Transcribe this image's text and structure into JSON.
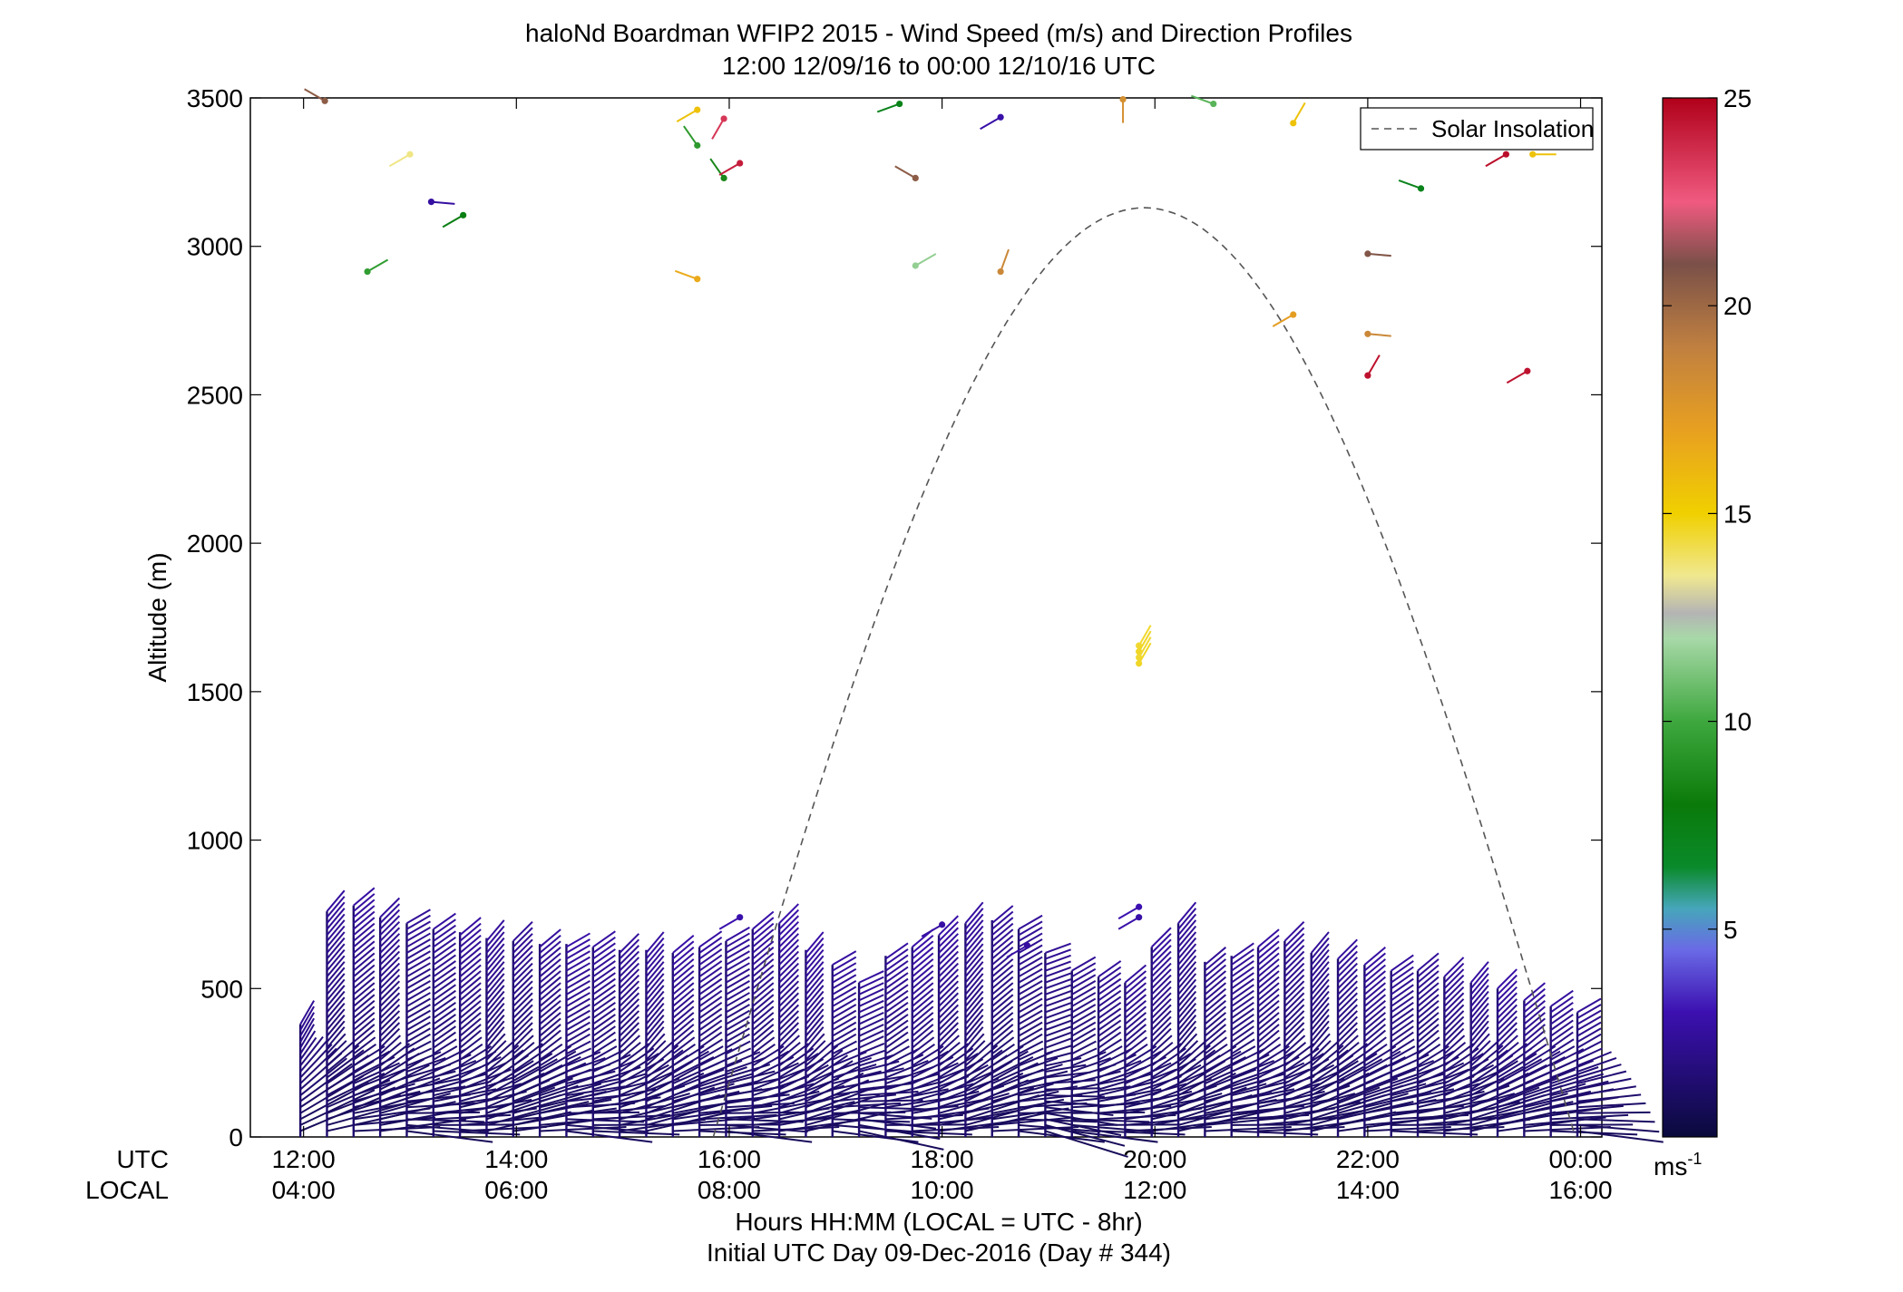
{
  "chart_data": {
    "type": "scatter",
    "title": "haloNd Boardman WFIP2 2015 - Wind Speed (m/s) and Direction Profiles",
    "subtitle": "12:00 12/09/16 to 00:00 12/10/16  UTC",
    "ylabel": "Altitude (m)",
    "xlabel": "Hours HH:MM  (LOCAL = UTC - 8hr)",
    "xlabel2": "Initial UTC Day 09-Dec-2016 (Day # 344)",
    "row_label_utc": "UTC",
    "row_label_local": "LOCAL",
    "xlim": [
      11.5,
      24.2
    ],
    "ylim": [
      0,
      3500
    ],
    "grid": false,
    "legend_position": "top-right",
    "legend": [
      {
        "name": "Solar Insolation",
        "style": "dashed",
        "color": "#555555"
      }
    ],
    "x_ticks": [
      {
        "hour": 12,
        "utc": "12:00",
        "local": "04:00"
      },
      {
        "hour": 14,
        "utc": "14:00",
        "local": "06:00"
      },
      {
        "hour": 16,
        "utc": "16:00",
        "local": "08:00"
      },
      {
        "hour": 18,
        "utc": "18:00",
        "local": "10:00"
      },
      {
        "hour": 20,
        "utc": "20:00",
        "local": "12:00"
      },
      {
        "hour": 22,
        "utc": "22:00",
        "local": "14:00"
      },
      {
        "hour": 24,
        "utc": "00:00",
        "local": "16:00"
      }
    ],
    "y_ticks": [
      {
        "v": 0,
        "label": "0"
      },
      {
        "v": 500,
        "label": "500"
      },
      {
        "v": 1000,
        "label": "1000"
      },
      {
        "v": 1500,
        "label": "1500"
      },
      {
        "v": 2000,
        "label": "2000"
      },
      {
        "v": 2500,
        "label": "2500"
      },
      {
        "v": 3000,
        "label": "3000"
      },
      {
        "v": 3500,
        "label": "3500"
      }
    ],
    "colorbar": {
      "min": 0,
      "max": 25,
      "ticks": [
        {
          "v": 5,
          "label": "5"
        },
        {
          "v": 10,
          "label": "10"
        },
        {
          "v": 15,
          "label": "15"
        },
        {
          "v": 20,
          "label": "20"
        },
        {
          "v": 25,
          "label": "25"
        }
      ],
      "unit_label": "ms",
      "unit_exponent": "-1",
      "stops": [
        {
          "v": 0,
          "color": "#0a0a3c"
        },
        {
          "v": 3,
          "color": "#3c10b0"
        },
        {
          "v": 4.5,
          "color": "#6a6ae6"
        },
        {
          "v": 5.5,
          "color": "#46a6ba"
        },
        {
          "v": 6.5,
          "color": "#0a8a2a"
        },
        {
          "v": 8,
          "color": "#0a7a0a"
        },
        {
          "v": 10,
          "color": "#3ea83e"
        },
        {
          "v": 12,
          "color": "#a8d8a8"
        },
        {
          "v": 12.6,
          "color": "#b4b4b4"
        },
        {
          "v": 13.5,
          "color": "#f0e890"
        },
        {
          "v": 15,
          "color": "#f0d000"
        },
        {
          "v": 17,
          "color": "#e8a020"
        },
        {
          "v": 19,
          "color": "#c08040"
        },
        {
          "v": 21,
          "color": "#7a5048"
        },
        {
          "v": 22.5,
          "color": "#f05a80"
        },
        {
          "v": 25,
          "color": "#b0001a"
        }
      ]
    },
    "solar_insolation": {
      "start_hour": 15.85,
      "end_hour": 23.95,
      "peak_altitude": 3130
    },
    "profiles": {
      "hours": [
        11.97,
        12.22,
        12.47,
        12.72,
        12.97,
        13.22,
        13.47,
        13.72,
        13.97,
        14.22,
        14.47,
        14.72,
        14.97,
        15.22,
        15.47,
        15.72,
        15.97,
        16.22,
        16.47,
        16.72,
        16.97,
        17.22,
        17.47,
        17.72,
        17.97,
        18.22,
        18.47,
        18.72,
        18.97,
        19.22,
        19.47,
        19.72,
        19.97,
        20.22,
        20.47,
        20.72,
        20.97,
        21.22,
        21.47,
        21.72,
        21.97,
        22.22,
        22.47,
        22.72,
        22.97,
        23.22,
        23.47,
        23.72,
        23.97
      ],
      "top_altitude_m": [
        380,
        760,
        780,
        740,
        720,
        700,
        690,
        670,
        660,
        650,
        650,
        640,
        630,
        630,
        620,
        640,
        660,
        700,
        720,
        630,
        580,
        520,
        610,
        640,
        680,
        720,
        730,
        700,
        620,
        560,
        540,
        520,
        640,
        720,
        590,
        610,
        640,
        660,
        620,
        600,
        580,
        560,
        560,
        540,
        520,
        500,
        460,
        440,
        420
      ],
      "speed_ms": [
        2.0,
        2.2,
        2.3,
        2.2,
        2.1,
        2.2,
        2.3,
        2.2,
        2.1,
        2.2,
        2.4,
        2.3,
        2.2,
        2.3,
        2.4,
        2.3,
        2.2,
        2.4,
        2.5,
        2.4,
        2.3,
        2.2,
        2.3,
        2.5,
        2.4,
        2.3,
        2.2,
        2.1,
        2.0,
        2.0,
        2.1,
        2.2,
        2.3,
        2.2,
        2.1,
        2.2,
        2.3,
        2.2,
        2.1,
        2.2,
        2.3,
        2.2,
        2.1,
        2.2,
        2.3,
        2.4,
        2.3,
        2.2,
        2.1
      ],
      "direction_deg": [
        30,
        40,
        50,
        45,
        60,
        55,
        50,
        40,
        45,
        50,
        60,
        55,
        45,
        40,
        50,
        55,
        60,
        50,
        45,
        40,
        60,
        65,
        55,
        50,
        45,
        40,
        50,
        60,
        70,
        60,
        55,
        50,
        45,
        40,
        50,
        55,
        50,
        45,
        40,
        45,
        50,
        55,
        50,
        45,
        40,
        45,
        50,
        55,
        60
      ]
    },
    "sparse_barbs": [
      {
        "x": 12.2,
        "y": 3490,
        "speed": 20.5,
        "dir": 300
      },
      {
        "x": 13.0,
        "y": 3310,
        "speed": 13.6,
        "dir": 240
      },
      {
        "x": 12.6,
        "y": 2915,
        "speed": 9.5,
        "dir": 60
      },
      {
        "x": 13.2,
        "y": 3150,
        "speed": 2.6,
        "dir": 95
      },
      {
        "x": 13.5,
        "y": 3105,
        "speed": 7.6,
        "dir": 240
      },
      {
        "x": 15.7,
        "y": 3460,
        "speed": 15.6,
        "dir": 240
      },
      {
        "x": 15.95,
        "y": 3430,
        "speed": 23.5,
        "dir": 210
      },
      {
        "x": 15.7,
        "y": 3340,
        "speed": 9.4,
        "dir": 325
      },
      {
        "x": 15.95,
        "y": 3230,
        "speed": 8.6,
        "dir": 325
      },
      {
        "x": 16.1,
        "y": 3280,
        "speed": 24.2,
        "dir": 240
      },
      {
        "x": 15.7,
        "y": 2890,
        "speed": 16.6,
        "dir": 290
      },
      {
        "x": 17.6,
        "y": 3480,
        "speed": 7.2,
        "dir": 250
      },
      {
        "x": 17.75,
        "y": 3230,
        "speed": 20.5,
        "dir": 300
      },
      {
        "x": 17.75,
        "y": 2935,
        "speed": 11.6,
        "dir": 60
      },
      {
        "x": 18.55,
        "y": 3435,
        "speed": 2.8,
        "dir": 240
      },
      {
        "x": 18.55,
        "y": 2915,
        "speed": 18.5,
        "dir": 20
      },
      {
        "x": 19.7,
        "y": 3495,
        "speed": 18.0,
        "dir": 180
      },
      {
        "x": 20.55,
        "y": 3480,
        "speed": 10.5,
        "dir": 290
      },
      {
        "x": 21.3,
        "y": 3415,
        "speed": 15.6,
        "dir": 30
      },
      {
        "x": 22.0,
        "y": 2975,
        "speed": 20.8,
        "dir": 95
      },
      {
        "x": 21.3,
        "y": 2770,
        "speed": 17.2,
        "dir": 240
      },
      {
        "x": 22.0,
        "y": 2705,
        "speed": 18.5,
        "dir": 95
      },
      {
        "x": 22.0,
        "y": 2565,
        "speed": 24.5,
        "dir": 30
      },
      {
        "x": 22.5,
        "y": 3195,
        "speed": 7.2,
        "dir": 290
      },
      {
        "x": 23.3,
        "y": 3310,
        "speed": 24.6,
        "dir": 240
      },
      {
        "x": 23.55,
        "y": 3310,
        "speed": 15.6,
        "dir": 90
      },
      {
        "x": 23.5,
        "y": 2580,
        "speed": 24.5,
        "dir": 240
      },
      {
        "x": 19.85,
        "y": 1655,
        "speed": 14.5,
        "dir": 30
      },
      {
        "x": 19.85,
        "y": 1635,
        "speed": 14.6,
        "dir": 30
      },
      {
        "x": 19.85,
        "y": 1615,
        "speed": 14.5,
        "dir": 30
      },
      {
        "x": 19.85,
        "y": 1595,
        "speed": 14.6,
        "dir": 30
      },
      {
        "x": 19.85,
        "y": 775,
        "speed": 3.0,
        "dir": 240
      },
      {
        "x": 19.85,
        "y": 740,
        "speed": 2.8,
        "dir": 240
      },
      {
        "x": 18.0,
        "y": 715,
        "speed": 2.7,
        "dir": 240
      },
      {
        "x": 18.8,
        "y": 645,
        "speed": 2.6,
        "dir": 240
      },
      {
        "x": 16.1,
        "y": 740,
        "speed": 2.9,
        "dir": 240
      }
    ]
  }
}
